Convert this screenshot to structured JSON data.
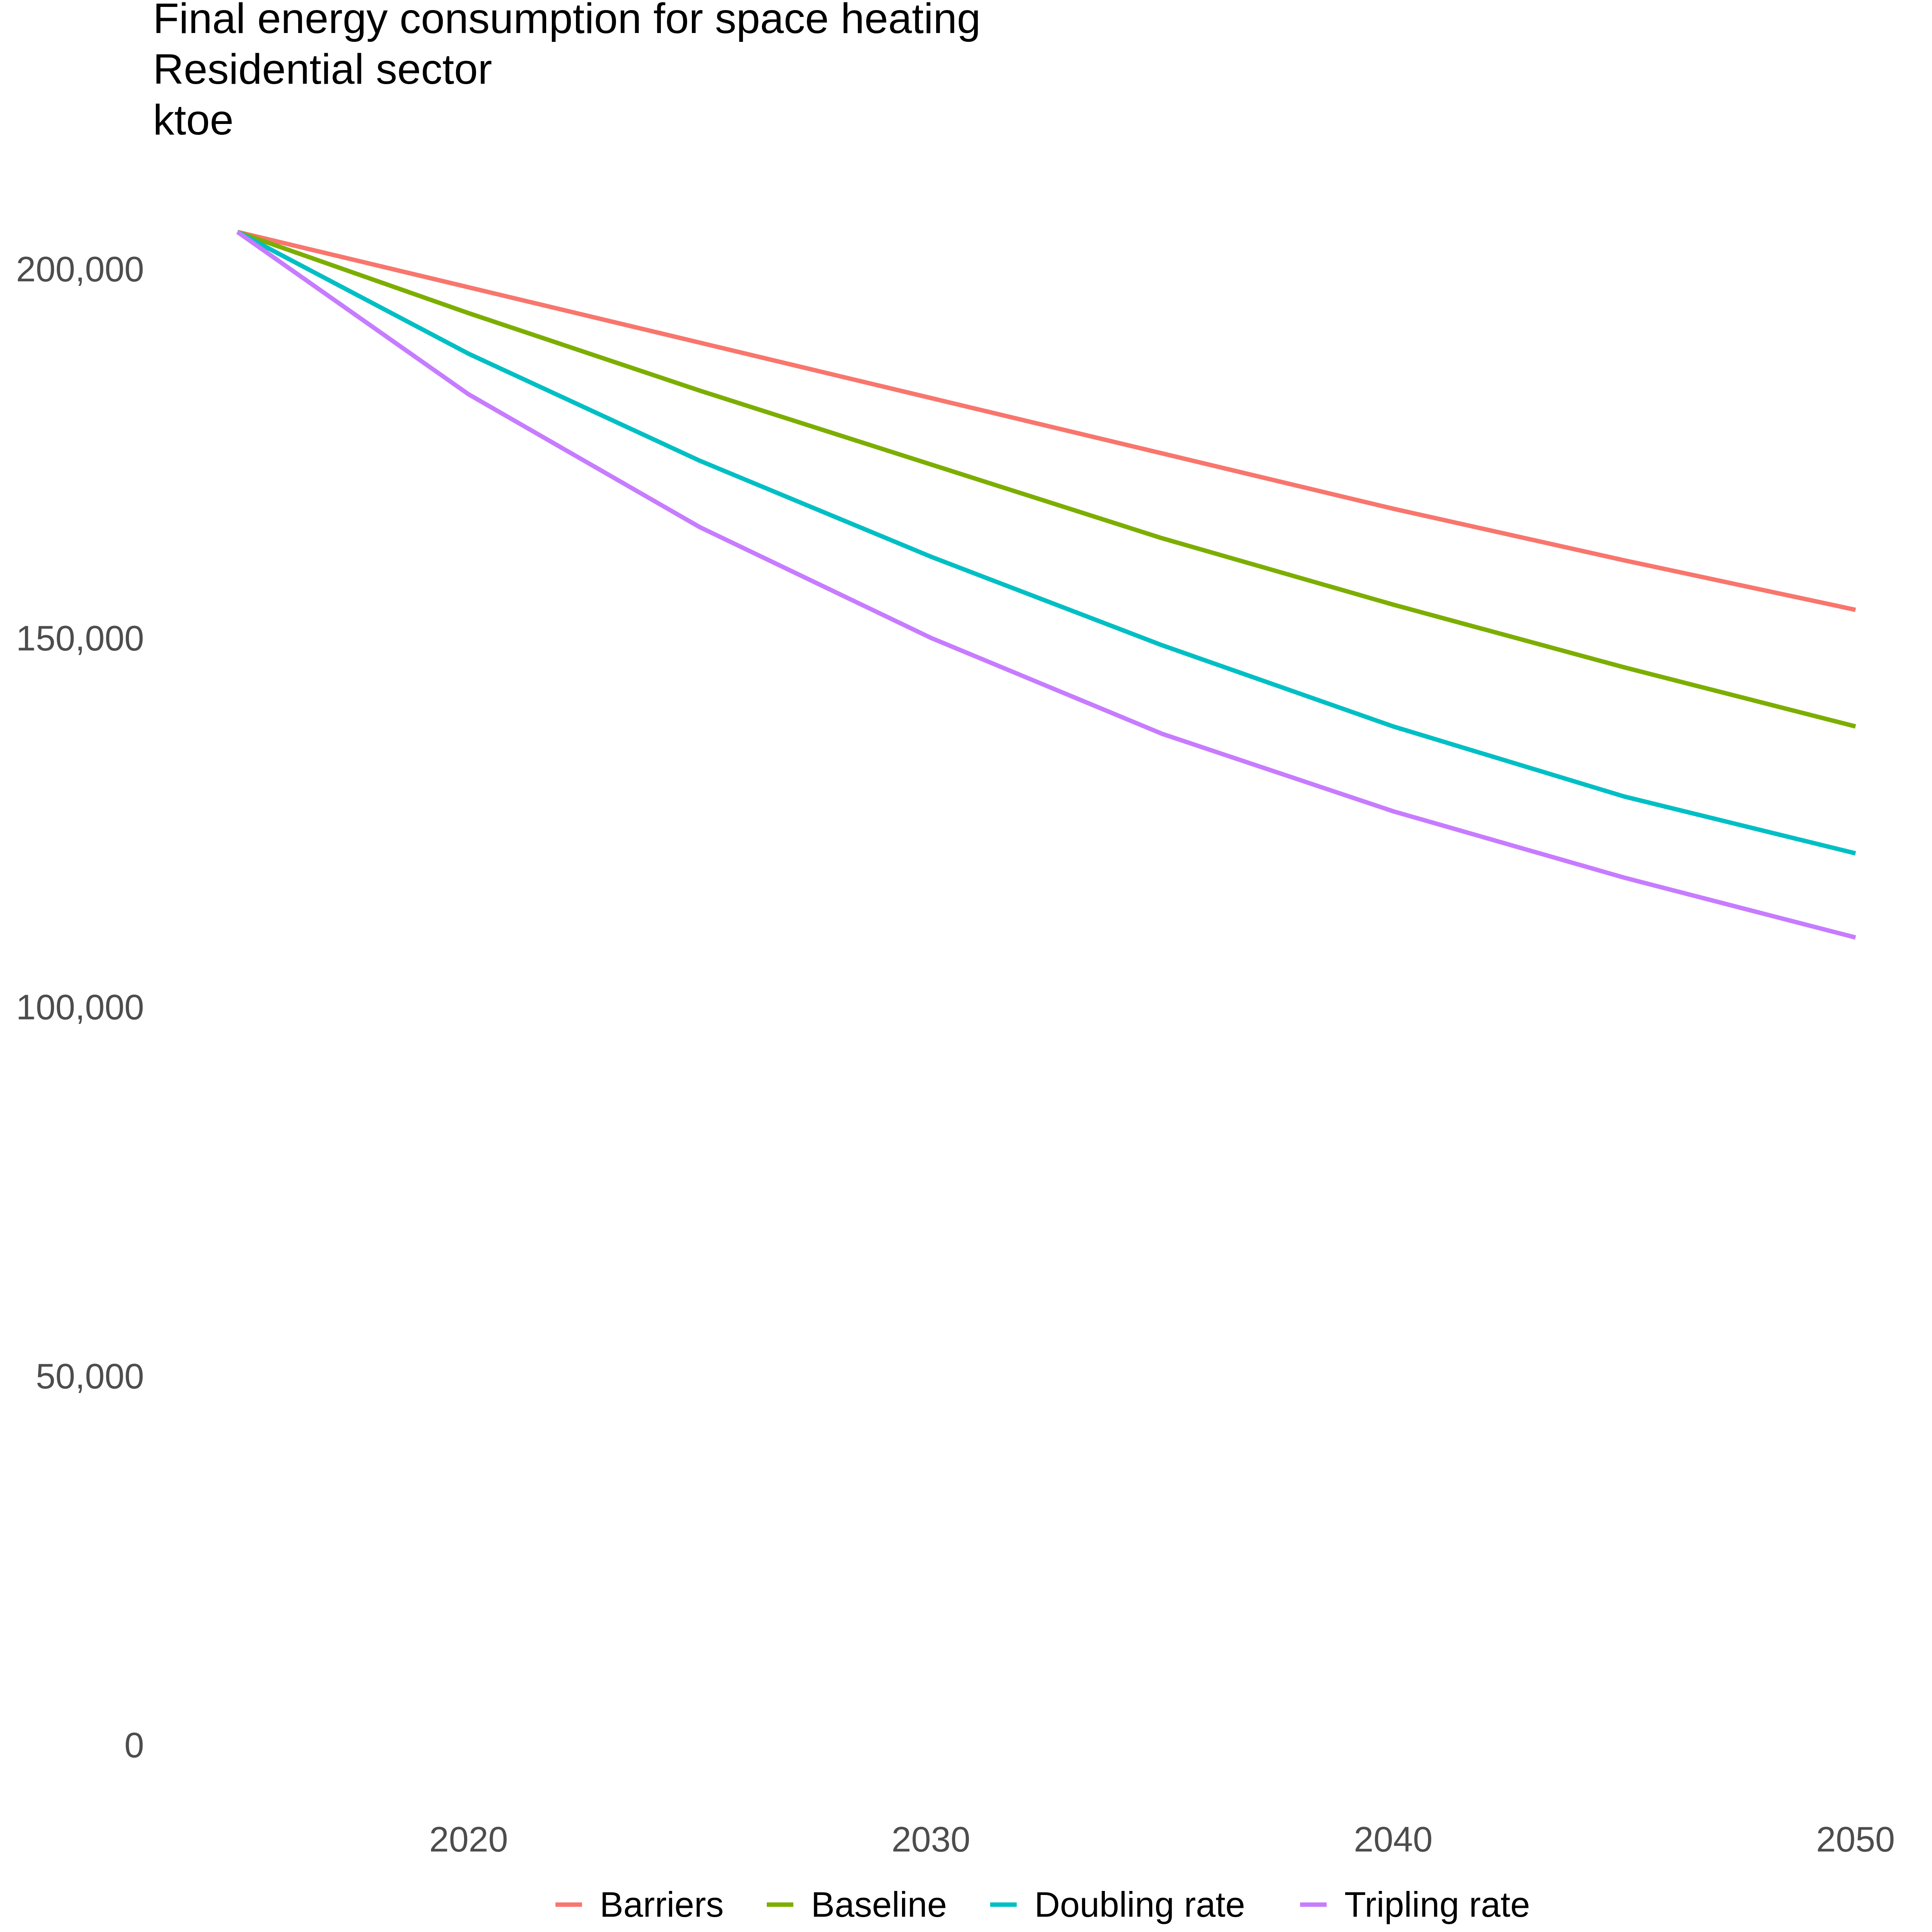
{
  "chart_data": {
    "type": "line",
    "title_lines": [
      "Final energy consumption for space heating",
      "Residential sector",
      "ktoe"
    ],
    "xlabel": "",
    "ylabel": "",
    "x": [
      2015,
      2020,
      2025,
      2030,
      2035,
      2040,
      2045,
      2050
    ],
    "xlim": [
      2014,
      2050
    ],
    "ylim": [
      0,
      205000
    ],
    "x_ticks": [
      2020,
      2030,
      2040,
      2050
    ],
    "x_tick_labels": [
      "2020",
      "2030",
      "2040",
      "2050"
    ],
    "y_ticks": [
      0,
      50000,
      100000,
      150000,
      200000
    ],
    "y_tick_labels": [
      "0",
      "50,000",
      "100,000",
      "150,000",
      "200,000"
    ],
    "grid": false,
    "legend_position": "bottom",
    "series": [
      {
        "name": "Barriers",
        "color": "#F8766D",
        "values": [
          205000,
          197500,
          190000,
          182500,
          175000,
          167500,
          160500,
          153800
        ]
      },
      {
        "name": "Baseline",
        "color": "#7CAE00",
        "values": [
          205000,
          194000,
          183500,
          173500,
          163500,
          154500,
          146000,
          138000
        ]
      },
      {
        "name": "Doubling rate",
        "color": "#00BFC4",
        "values": [
          205000,
          188500,
          174000,
          161000,
          149000,
          138000,
          128500,
          120800
        ]
      },
      {
        "name": "Tripling rate",
        "color": "#C77CFF",
        "values": [
          205000,
          183000,
          165000,
          150000,
          137000,
          126500,
          117500,
          109400
        ]
      }
    ]
  }
}
